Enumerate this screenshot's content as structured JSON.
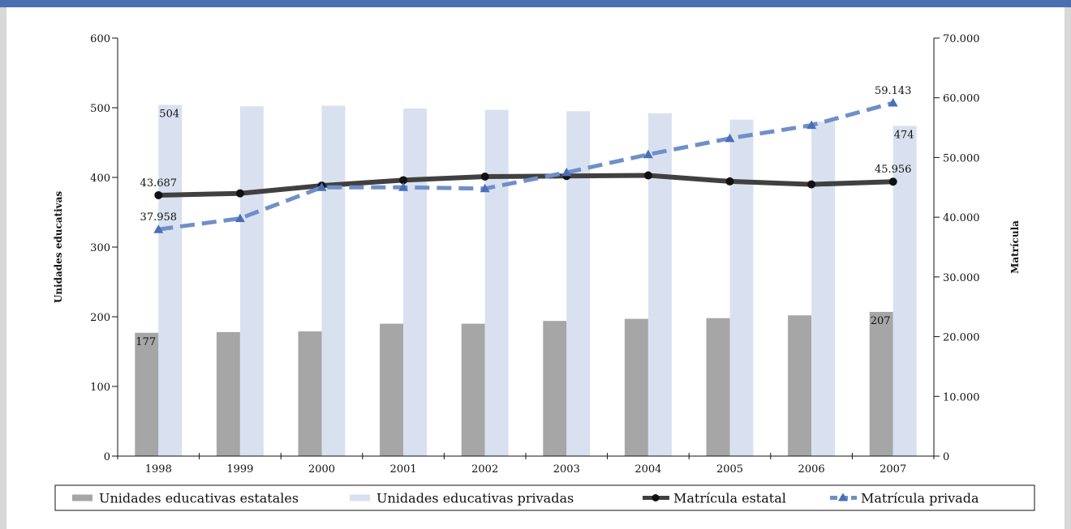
{
  "chart_data": {
    "type": "bar",
    "categories": [
      "1998",
      "1999",
      "2000",
      "2001",
      "2002",
      "2003",
      "2004",
      "2005",
      "2006",
      "2007"
    ],
    "ylabel": "Unidades educativas",
    "ylabel_right": "Matrícula",
    "ylim": [
      0,
      600
    ],
    "ylim_right": [
      0,
      70000
    ],
    "yticks": [
      "0",
      "100",
      "200",
      "300",
      "400",
      "500",
      "600"
    ],
    "yticks_right": [
      "0",
      "10.000",
      "20.000",
      "30.000",
      "40.000",
      "50.000",
      "60.000",
      "70.000"
    ],
    "series": [
      {
        "name": "Unidades educativas estatales",
        "kind": "bar",
        "axis": "left",
        "color": "#a6a6a6",
        "values": [
          177,
          178,
          179,
          190,
          190,
          194,
          197,
          198,
          202,
          207
        ]
      },
      {
        "name": "Unidades educativas privadas",
        "kind": "bar",
        "axis": "left",
        "color": "#d9e1f0",
        "values": [
          504,
          502,
          503,
          499,
          497,
          495,
          492,
          483,
          480,
          474
        ]
      },
      {
        "name": "Matrícula estatal",
        "kind": "line",
        "axis": "right",
        "color": "#404040",
        "marker": "circle",
        "values": [
          43687,
          44000,
          45300,
          46200,
          46800,
          46900,
          47000,
          46000,
          45500,
          45956
        ]
      },
      {
        "name": "Matrícula privada",
        "kind": "line",
        "axis": "right",
        "color": "#6f8fc8",
        "marker": "triangle",
        "dashed": true,
        "values": [
          37958,
          39800,
          45000,
          45000,
          44800,
          47500,
          50500,
          53200,
          55400,
          59143
        ]
      }
    ],
    "data_labels": [
      {
        "series": 0,
        "index": 0,
        "text": "177"
      },
      {
        "series": 0,
        "index": 9,
        "text": "207"
      },
      {
        "series": 1,
        "index": 0,
        "text": "504"
      },
      {
        "series": 1,
        "index": 9,
        "text": "474"
      },
      {
        "series": 2,
        "index": 0,
        "text": "43.687"
      },
      {
        "series": 2,
        "index": 9,
        "text": "45.956"
      },
      {
        "series": 3,
        "index": 0,
        "text": "37.958"
      },
      {
        "series": 3,
        "index": 9,
        "text": "59.143"
      }
    ],
    "legend": "bottom"
  }
}
